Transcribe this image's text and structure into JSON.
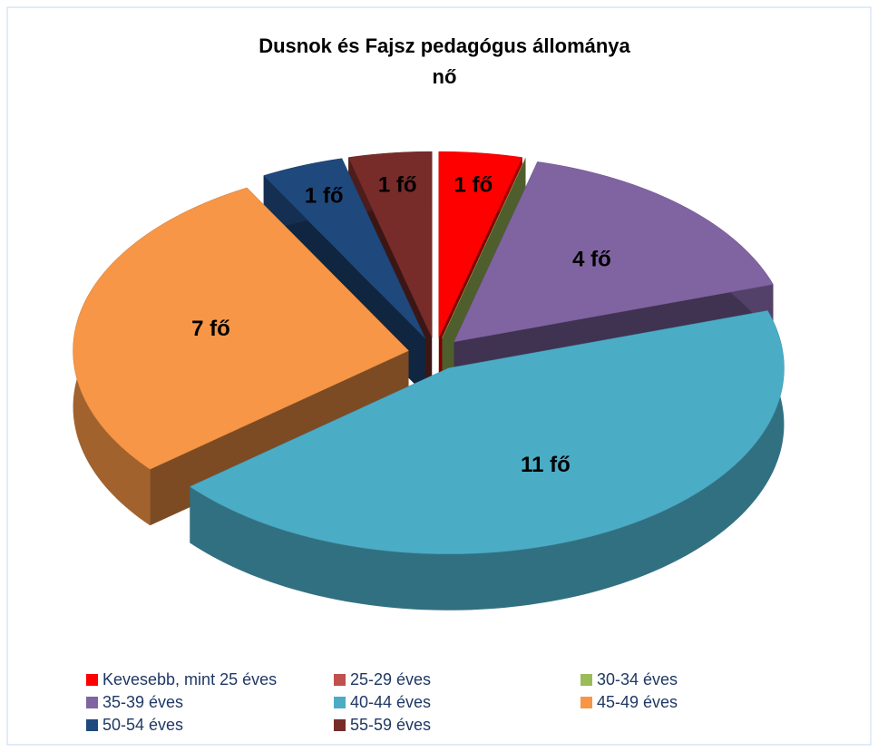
{
  "chart_data": {
    "type": "pie",
    "title": "Dusnok és Fajsz pedagógus állománya",
    "subtitle": "nő",
    "categories": [
      "Kevesebb, mint 25 éves",
      "25-29 éves",
      "30-34 éves",
      "35-39 éves",
      "40-44 éves",
      "45-49 éves",
      "50-54 éves",
      "55-59 éves"
    ],
    "values": [
      1,
      0,
      0,
      4,
      11,
      7,
      1,
      1
    ],
    "value_labels": [
      "1 fő",
      null,
      null,
      "4 fő",
      "11 fő",
      "7 fő",
      "1 fő",
      "1 fő"
    ],
    "colors": [
      "#ff0000",
      "#c0504d",
      "#9bbb59",
      "#8064a2",
      "#4bacc6",
      "#f79646",
      "#1f497d",
      "#772c2a"
    ],
    "legend": "bottom"
  }
}
